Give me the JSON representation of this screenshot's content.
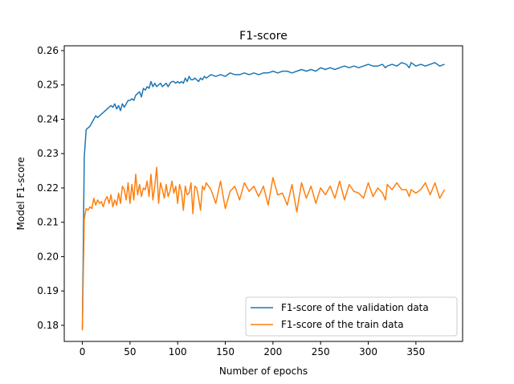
{
  "chart_data": {
    "type": "line",
    "title": "F1-score",
    "xlabel": "Number of epochs",
    "ylabel": "Model F1-score",
    "xlim": [
      -19,
      399
    ],
    "ylim": [
      0.1753,
      0.2614
    ],
    "xticks": [
      0,
      50,
      100,
      150,
      200,
      250,
      300,
      350
    ],
    "yticks": [
      0.18,
      0.19,
      0.2,
      0.21,
      0.22,
      0.23,
      0.24,
      0.25,
      0.26
    ],
    "ytick_labels": [
      "0.18",
      "0.19",
      "0.20",
      "0.21",
      "0.22",
      "0.23",
      "0.24",
      "0.25",
      "0.26"
    ],
    "grid": false,
    "legend_position": "lower-right",
    "series": [
      {
        "name": "F1-score of the validation data",
        "color": "#1f77b4",
        "x": [
          0,
          2,
          4,
          6,
          8,
          10,
          12,
          14,
          16,
          18,
          20,
          22,
          24,
          26,
          28,
          30,
          32,
          34,
          36,
          38,
          40,
          42,
          44,
          46,
          48,
          50,
          52,
          54,
          56,
          58,
          60,
          62,
          64,
          66,
          68,
          70,
          72,
          74,
          76,
          78,
          80,
          82,
          84,
          86,
          88,
          90,
          92,
          94,
          96,
          98,
          100,
          102,
          104,
          106,
          108,
          110,
          112,
          114,
          116,
          118,
          120,
          122,
          124,
          126,
          128,
          130,
          135,
          140,
          145,
          150,
          155,
          160,
          165,
          170,
          175,
          180,
          185,
          190,
          195,
          200,
          205,
          210,
          215,
          220,
          225,
          230,
          235,
          240,
          245,
          250,
          255,
          260,
          265,
          270,
          275,
          280,
          285,
          290,
          295,
          300,
          305,
          310,
          315,
          318,
          320,
          325,
          330,
          335,
          340,
          343,
          345,
          350,
          355,
          360,
          365,
          370,
          375,
          380
        ],
        "y": [
          0.179,
          0.229,
          0.237,
          0.2375,
          0.238,
          0.239,
          0.24,
          0.241,
          0.2405,
          0.241,
          0.2415,
          0.242,
          0.2425,
          0.243,
          0.2435,
          0.244,
          0.2435,
          0.2445,
          0.243,
          0.244,
          0.2425,
          0.2445,
          0.2435,
          0.2445,
          0.2455,
          0.2455,
          0.246,
          0.2455,
          0.247,
          0.2475,
          0.248,
          0.2465,
          0.249,
          0.2485,
          0.2495,
          0.249,
          0.251,
          0.2495,
          0.2505,
          0.2495,
          0.25,
          0.2505,
          0.2495,
          0.25,
          0.2505,
          0.2495,
          0.2505,
          0.251,
          0.251,
          0.2505,
          0.251,
          0.2505,
          0.251,
          0.2505,
          0.252,
          0.251,
          0.2525,
          0.2515,
          0.2515,
          0.252,
          0.2515,
          0.251,
          0.252,
          0.2515,
          0.2525,
          0.252,
          0.253,
          0.2525,
          0.253,
          0.2525,
          0.2535,
          0.253,
          0.253,
          0.2535,
          0.253,
          0.2535,
          0.253,
          0.2535,
          0.2535,
          0.254,
          0.2535,
          0.254,
          0.254,
          0.2535,
          0.254,
          0.2545,
          0.254,
          0.2545,
          0.254,
          0.255,
          0.2545,
          0.255,
          0.2545,
          0.255,
          0.2555,
          0.255,
          0.2555,
          0.255,
          0.2555,
          0.256,
          0.2555,
          0.2555,
          0.256,
          0.255,
          0.2555,
          0.256,
          0.2555,
          0.2565,
          0.256,
          0.255,
          0.2565,
          0.2555,
          0.256,
          0.2555,
          0.256,
          0.2565,
          0.2555,
          0.256
        ]
      },
      {
        "name": "F1-score of the train data",
        "color": "#ff7f0e",
        "x": [
          0,
          2,
          4,
          6,
          8,
          10,
          12,
          14,
          16,
          18,
          20,
          22,
          24,
          26,
          28,
          30,
          32,
          34,
          36,
          38,
          40,
          42,
          44,
          46,
          48,
          50,
          52,
          54,
          56,
          58,
          60,
          62,
          64,
          66,
          68,
          70,
          72,
          74,
          76,
          78,
          80,
          82,
          84,
          86,
          88,
          90,
          92,
          94,
          96,
          98,
          100,
          102,
          104,
          106,
          108,
          110,
          112,
          114,
          116,
          118,
          120,
          122,
          124,
          126,
          128,
          130,
          135,
          140,
          145,
          150,
          155,
          160,
          165,
          170,
          175,
          180,
          185,
          190,
          195,
          200,
          205,
          210,
          215,
          220,
          225,
          230,
          235,
          240,
          245,
          250,
          255,
          260,
          265,
          270,
          275,
          280,
          285,
          290,
          295,
          300,
          305,
          310,
          315,
          318,
          320,
          325,
          330,
          335,
          340,
          343,
          345,
          350,
          355,
          360,
          365,
          370,
          375,
          380
        ],
        "y": [
          0.1785,
          0.211,
          0.214,
          0.2135,
          0.2145,
          0.214,
          0.217,
          0.215,
          0.2165,
          0.2155,
          0.216,
          0.2145,
          0.2165,
          0.2175,
          0.2155,
          0.218,
          0.2145,
          0.2165,
          0.215,
          0.2185,
          0.2155,
          0.2205,
          0.2195,
          0.2165,
          0.2215,
          0.2155,
          0.221,
          0.2165,
          0.224,
          0.218,
          0.221,
          0.2175,
          0.22,
          0.2195,
          0.222,
          0.2175,
          0.224,
          0.2165,
          0.2205,
          0.226,
          0.2155,
          0.2215,
          0.2195,
          0.217,
          0.221,
          0.2175,
          0.219,
          0.222,
          0.2185,
          0.2205,
          0.2155,
          0.221,
          0.219,
          0.2135,
          0.2205,
          0.218,
          0.2185,
          0.2215,
          0.2125,
          0.2205,
          0.22,
          0.217,
          0.2135,
          0.2205,
          0.2195,
          0.2215,
          0.2195,
          0.2155,
          0.222,
          0.214,
          0.219,
          0.2205,
          0.2165,
          0.2215,
          0.219,
          0.2205,
          0.2175,
          0.2205,
          0.215,
          0.223,
          0.218,
          0.2185,
          0.215,
          0.221,
          0.213,
          0.2215,
          0.217,
          0.2205,
          0.2155,
          0.22,
          0.218,
          0.2205,
          0.217,
          0.222,
          0.2165,
          0.221,
          0.219,
          0.2185,
          0.217,
          0.2215,
          0.2175,
          0.22,
          0.2185,
          0.2165,
          0.221,
          0.2195,
          0.2215,
          0.2195,
          0.2195,
          0.2175,
          0.2195,
          0.2185,
          0.2195,
          0.2215,
          0.218,
          0.2215,
          0.217,
          0.2195
        ]
      }
    ]
  }
}
